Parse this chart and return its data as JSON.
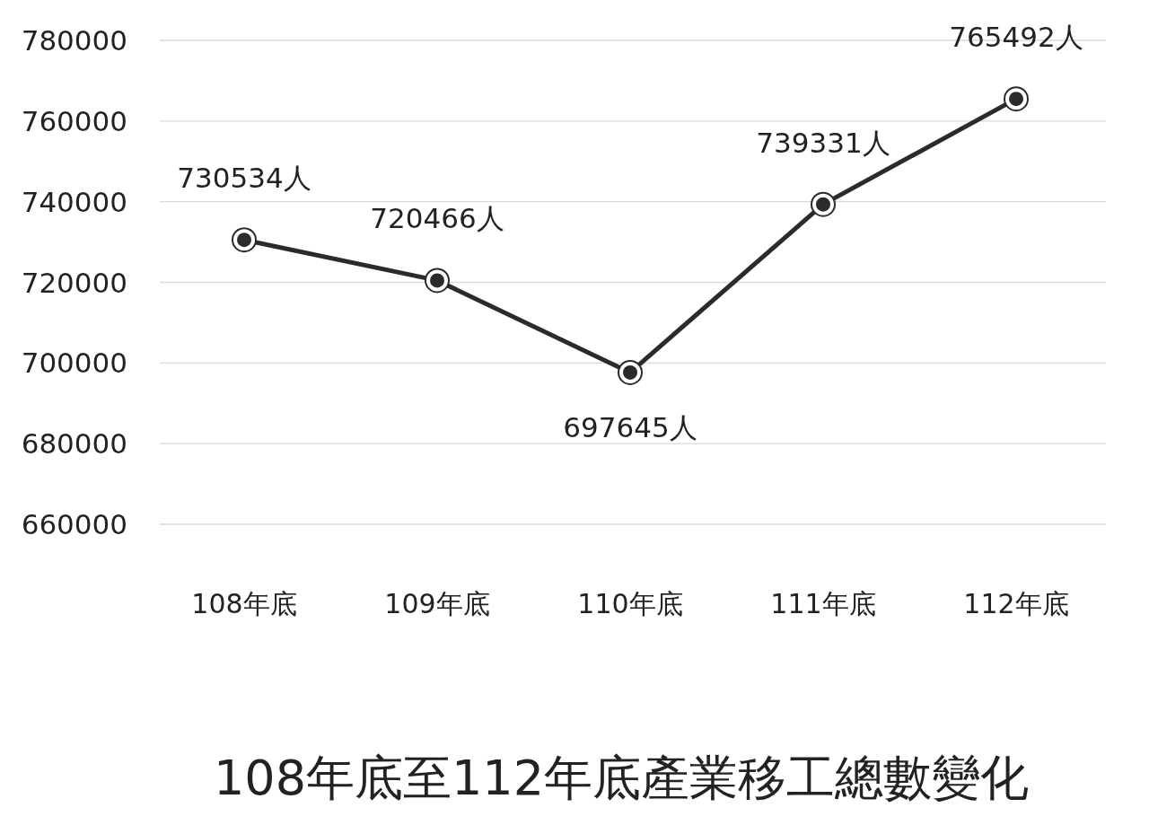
{
  "chart_data": {
    "type": "line",
    "title": "108年底至112年底產業移工總數變化",
    "categories": [
      "108年底",
      "109年底",
      "110年底",
      "111年底",
      "112年底"
    ],
    "series": [
      {
        "color": "#2b2b2b",
        "values": [
          730534,
          720466,
          697645,
          739331,
          765492
        ]
      }
    ],
    "value_labels": [
      "730534人",
      "720466人",
      "697645人",
      "739331人",
      "765492人"
    ],
    "ylim": [
      660000,
      780000
    ],
    "yticks": [
      660000,
      680000,
      700000,
      720000,
      740000,
      760000,
      780000
    ],
    "grid": "y",
    "marker": "circle",
    "line_style": "solid"
  }
}
